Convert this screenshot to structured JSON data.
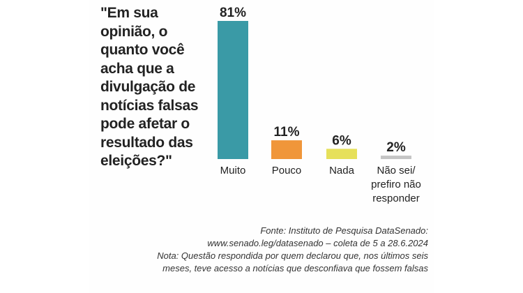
{
  "question": "\"Em sua opinião, o quanto você acha que a divulgação de notícias falsas pode afetar o resultado das eleições?\"",
  "chart_data": {
    "type": "bar",
    "title": "",
    "categories": [
      "Muito",
      "Pouco",
      "Nada",
      "Não sei/\nprefiro não\nresponder"
    ],
    "values": [
      81,
      11,
      6,
      2
    ],
    "value_labels": [
      "81%",
      "11%",
      "6%",
      "2%"
    ],
    "colors": [
      "#3a9aa6",
      "#f0963a",
      "#e6e05a",
      "#c4c4c4"
    ],
    "ylim": [
      0,
      81
    ],
    "grid": false,
    "legend": "none"
  },
  "footer": {
    "source_line1": "Fonte: Instituto de Pesquisa DataSenado:",
    "source_line2": "www.senado.leg/datasenado – coleta de 5 a 28.6.2024",
    "note_line1": "Nota: Questão respondida por quem declarou que, nos últimos seis",
    "note_line2": "meses, teve acesso a notícias que desconfiava que fossem falsas"
  }
}
